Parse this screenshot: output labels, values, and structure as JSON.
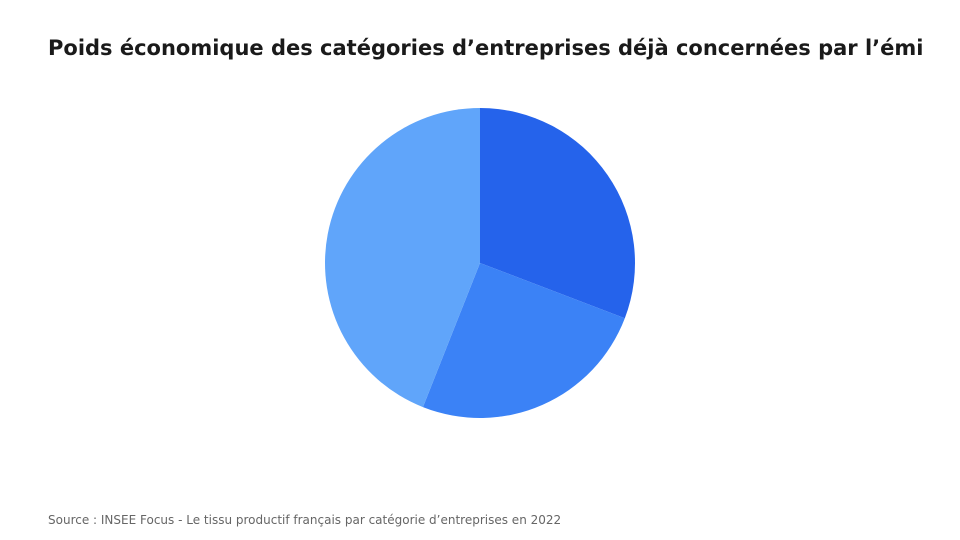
{
  "title": "Poids économique des catégories d’entreprises déjà concernées par l’émi",
  "source": "Source : INSEE Focus - Le tissu productif français par catégorie d’entreprises en 2022",
  "colors": {
    "background": "#ffffff",
    "title": "#1a1a1a",
    "source": "#666666",
    "slices": [
      "#2563eb",
      "#3b82f6",
      "#60a5fa"
    ]
  },
  "chart_data": {
    "type": "pie",
    "title": "Poids économique des catégories d’entreprises déjà concernées par l’émi",
    "start": "12 o'clock",
    "direction": "clockwise",
    "legend": "none",
    "slices": [
      {
        "value": 30.8
      },
      {
        "value": 25.2
      },
      {
        "value": 44.0
      }
    ]
  }
}
